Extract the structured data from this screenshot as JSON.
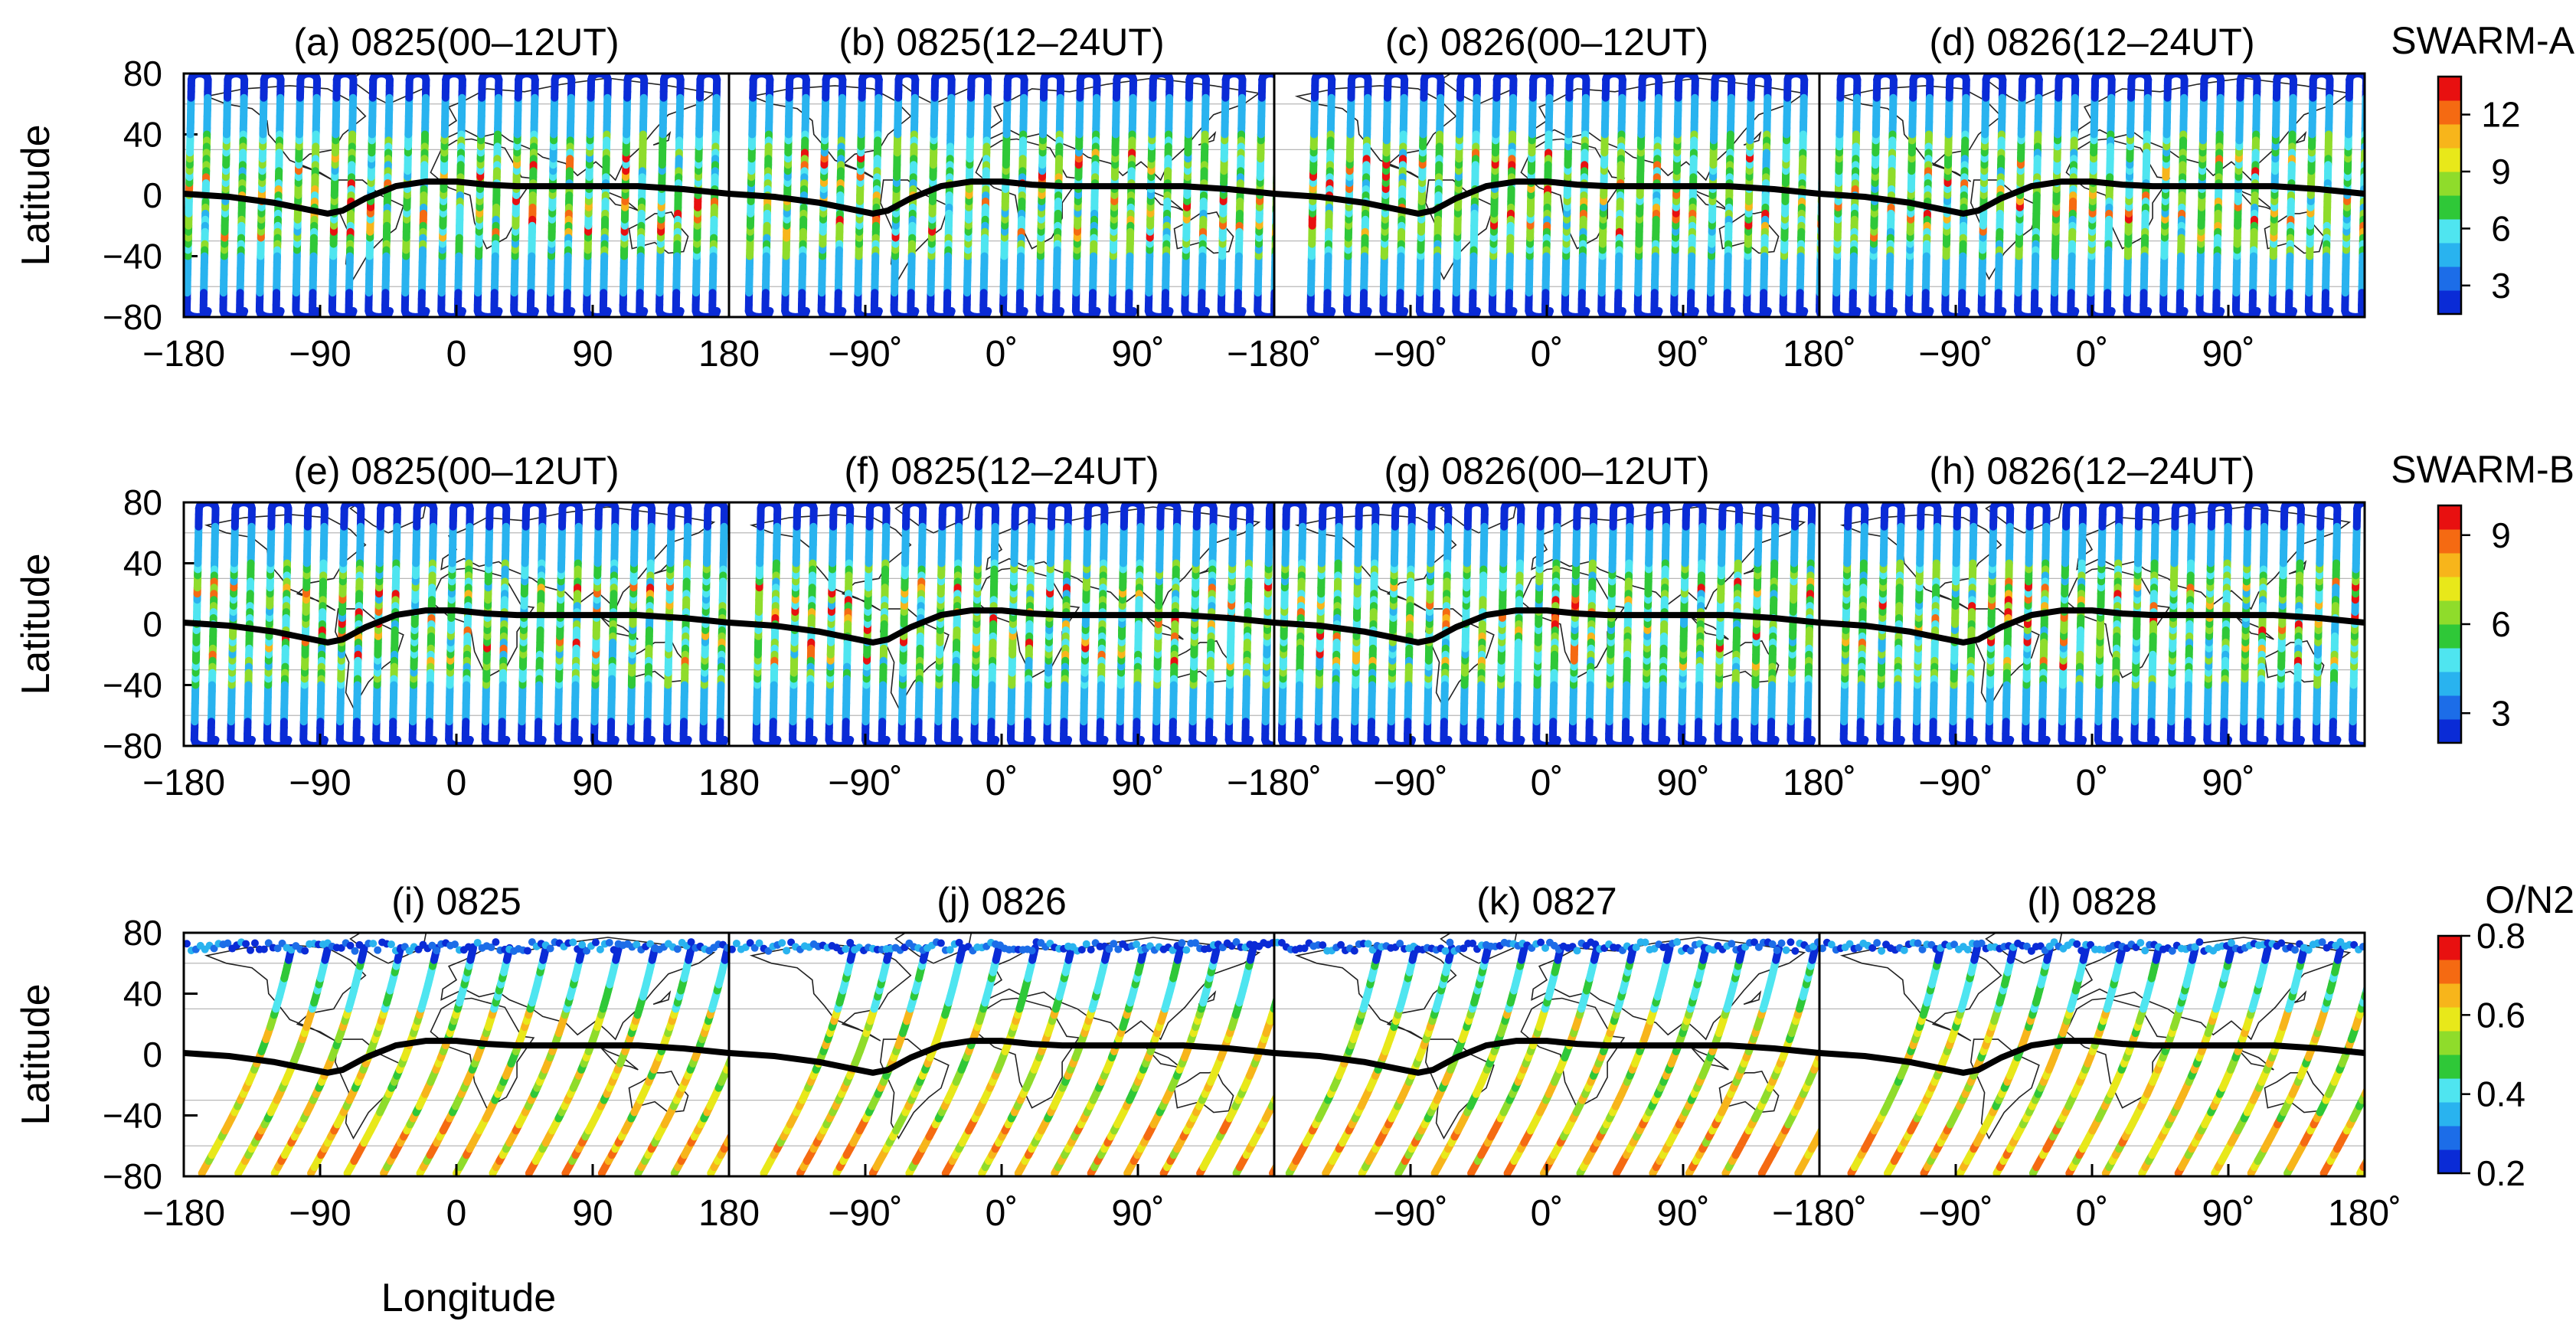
{
  "chart_data": {
    "type": "scatter",
    "description_rows": [
      {
        "row_id": "A",
        "colorbar_title": "SWARM-A",
        "colorbar_ticks": [
          "3",
          "6",
          "9",
          "12"
        ],
        "colorbar_range": [
          1.5,
          14
        ],
        "panels": [
          {
            "label": "(a) 0825(00–12UT)",
            "xticks": [
              "−180",
              "−90",
              "0",
              "90",
              "180"
            ]
          },
          {
            "label": "(b) 0825(12–24UT)",
            "xticks": [
              "−90˚",
              "0˚",
              "90˚",
              "−180˚"
            ]
          },
          {
            "label": "(c) 0826(00–12UT)",
            "xticks": [
              "−90˚",
              "0˚",
              "90˚",
              "180˚"
            ]
          },
          {
            "label": "(d) 0826(12–24UT)",
            "xticks": [
              "−90˚",
              "0˚",
              "90˚"
            ]
          }
        ]
      },
      {
        "row_id": "B",
        "colorbar_title": "SWARM-B",
        "colorbar_ticks": [
          "3",
          "6",
          "9"
        ],
        "colorbar_range": [
          2,
          10
        ],
        "panels": [
          {
            "label": "(e) 0825(00–12UT)",
            "xticks": [
              "−180",
              "−90",
              "0",
              "90",
              "180"
            ]
          },
          {
            "label": "(f) 0825(12–24UT)",
            "xticks": [
              "−90˚",
              "0˚",
              "90˚",
              "−180˚"
            ]
          },
          {
            "label": "(g) 0826(00–12UT)",
            "xticks": [
              "−90˚",
              "0˚",
              "90˚",
              "180˚"
            ]
          },
          {
            "label": "(h) 0826(12–24UT)",
            "xticks": [
              "−90˚",
              "0˚",
              "90˚"
            ]
          }
        ]
      },
      {
        "row_id": "C",
        "colorbar_title": "O/N2",
        "colorbar_ticks": [
          "0.2",
          "0.4",
          "0.6",
          "0.8"
        ],
        "colorbar_range": [
          0.2,
          0.8
        ],
        "panels": [
          {
            "label": "(i) 0825",
            "xticks": [
              "−180",
              "−90",
              "0",
              "90",
              "180"
            ]
          },
          {
            "label": "(j) 0826",
            "xticks": [
              "−90˚",
              "0˚",
              "90˚"
            ]
          },
          {
            "label": "(k) 0827",
            "xticks": [
              "−90˚",
              "0˚",
              "90˚",
              "−180˚"
            ]
          },
          {
            "label": "(l) 0828",
            "xticks": [
              "−90˚",
              "0˚",
              "90˚",
              "180˚"
            ]
          }
        ]
      }
    ],
    "ylabel": "Latitude",
    "xlabel": "Longitude",
    "yticks": [
      "80",
      "40",
      "0",
      "−40",
      "−80"
    ],
    "ylim": [
      -80,
      80
    ],
    "xlim": [
      -180,
      180
    ],
    "dip_equator": {
      "lon": [
        -180,
        -150,
        -120,
        -100,
        -85,
        -75,
        -60,
        -40,
        -20,
        0,
        20,
        40,
        60,
        80,
        100,
        120,
        150,
        180
      ],
      "lat": [
        1,
        -1,
        -5,
        -9,
        -12,
        -10,
        -2,
        6,
        9,
        9,
        7,
        6,
        6,
        6,
        6,
        6,
        4,
        1
      ]
    },
    "colormap": [
      "#0a2bd6",
      "#1c6de8",
      "#29b3ef",
      "#4fe5f0",
      "#2fc838",
      "#8fdc2b",
      "#e8e81a",
      "#f7b51b",
      "#f56a12",
      "#e81010"
    ]
  }
}
